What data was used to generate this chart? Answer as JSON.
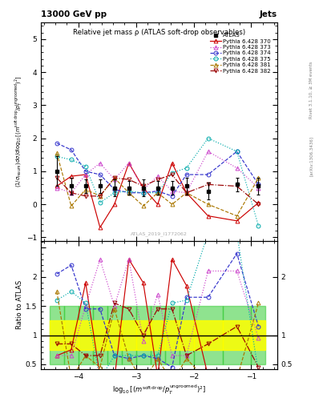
{
  "title_top": "13000 GeV pp",
  "title_right": "Jets",
  "plot_title": "Relative jet mass ρ (ATLAS soft-drop observables)",
  "watermark": "ATLAS_2019_I1772062",
  "rivet_label": "Rivet 3.1.10, ≥ 3M events",
  "arxiv_label": "[arXiv:1306.3436]",
  "ylabel_ratio": "Ratio to ATLAS",
  "xlim": [
    -4.65,
    -0.55
  ],
  "ylim_main": [
    -1.1,
    5.5
  ],
  "ylim_ratio": [
    0.42,
    2.62
  ],
  "xbins_lo": [
    -4.5,
    -4.25,
    -4.0,
    -3.75,
    -3.5,
    -3.25,
    -3.0,
    -2.75,
    -2.5,
    -2.25,
    -2.0,
    -1.5,
    -1.0
  ],
  "xbins_hi": [
    -4.25,
    -4.0,
    -3.75,
    -3.5,
    -3.25,
    -3.0,
    -2.75,
    -2.5,
    -2.25,
    -2.0,
    -1.5,
    -1.0,
    -0.75
  ],
  "atlas_data": {
    "y": [
      1.0,
      0.55,
      0.55,
      0.55,
      0.5,
      0.5,
      0.5,
      0.5,
      0.5,
      0.55,
      0.4,
      0.6,
      0.55
    ],
    "yerr": [
      0.45,
      0.25,
      0.2,
      0.2,
      0.25,
      0.2,
      0.25,
      0.2,
      0.2,
      0.25,
      0.25,
      0.2,
      0.25
    ],
    "color": "#000000",
    "marker": "s",
    "label": "ATLAS"
  },
  "mc_sets": [
    {
      "label": "Pythia 6.428 370",
      "color": "#cc0000",
      "marker": "^",
      "linestyle": "-",
      "y": [
        0.55,
        0.85,
        0.9,
        -0.7,
        0.0,
        1.25,
        0.5,
        0.0,
        1.25,
        0.35,
        -0.35,
        -0.5,
        0.05
      ],
      "ratio": [
        0.65,
        0.75,
        1.9,
        0.3,
        0.25,
        2.3,
        1.9,
        0.3,
        2.3,
        1.85,
        0.3,
        0.3,
        0.3
      ]
    },
    {
      "label": "Pythia 6.428 373",
      "color": "#cc44cc",
      "marker": "^",
      "linestyle": ":",
      "y": [
        0.5,
        0.35,
        0.9,
        1.25,
        0.75,
        1.25,
        0.45,
        0.85,
        0.4,
        0.35,
        1.6,
        1.1,
        0.5
      ],
      "ratio": [
        0.65,
        0.65,
        1.5,
        2.3,
        1.5,
        2.3,
        0.9,
        1.7,
        0.65,
        0.65,
        2.1,
        2.1,
        0.95
      ]
    },
    {
      "label": "Pythia 6.428 374",
      "color": "#3333cc",
      "marker": "o",
      "linestyle": "--",
      "y": [
        1.85,
        1.65,
        1.0,
        0.9,
        0.45,
        0.35,
        0.35,
        0.4,
        0.25,
        0.9,
        0.9,
        1.6,
        0.6
      ],
      "ratio": [
        2.05,
        2.2,
        1.45,
        1.45,
        0.65,
        0.6,
        0.65,
        0.6,
        0.45,
        1.65,
        1.65,
        2.4,
        1.15
      ]
    },
    {
      "label": "Pythia 6.428 375",
      "color": "#00aaaa",
      "marker": "o",
      "linestyle": ":",
      "y": [
        1.45,
        1.35,
        1.15,
        0.05,
        0.35,
        0.4,
        0.35,
        0.35,
        0.95,
        1.1,
        2.0,
        1.6,
        -0.65
      ],
      "ratio": [
        1.6,
        1.75,
        1.55,
        0.25,
        0.65,
        0.65,
        0.65,
        0.65,
        1.55,
        1.6,
        2.75,
        2.75,
        0.35
      ]
    },
    {
      "label": "Pythia 6.428 381",
      "color": "#aa7700",
      "marker": "^",
      "linestyle": "--",
      "y": [
        1.55,
        -0.05,
        0.45,
        0.25,
        0.8,
        0.35,
        -0.05,
        0.35,
        0.0,
        0.35,
        0.0,
        -0.35,
        0.8
      ],
      "ratio": [
        1.75,
        0.25,
        0.65,
        0.45,
        1.45,
        0.6,
        0.2,
        0.6,
        0.2,
        0.6,
        0.2,
        0.25,
        1.55
      ]
    },
    {
      "label": "Pythia 6.428 382",
      "color": "#990000",
      "marker": "v",
      "linestyle": "-.",
      "y": [
        0.8,
        0.35,
        0.25,
        0.25,
        0.8,
        0.75,
        0.55,
        0.75,
        0.9,
        0.35,
        0.6,
        0.55,
        0.0
      ],
      "ratio": [
        0.85,
        0.85,
        0.65,
        0.65,
        1.55,
        1.45,
        1.0,
        1.45,
        1.45,
        0.65,
        0.85,
        1.15,
        0.45
      ]
    }
  ]
}
